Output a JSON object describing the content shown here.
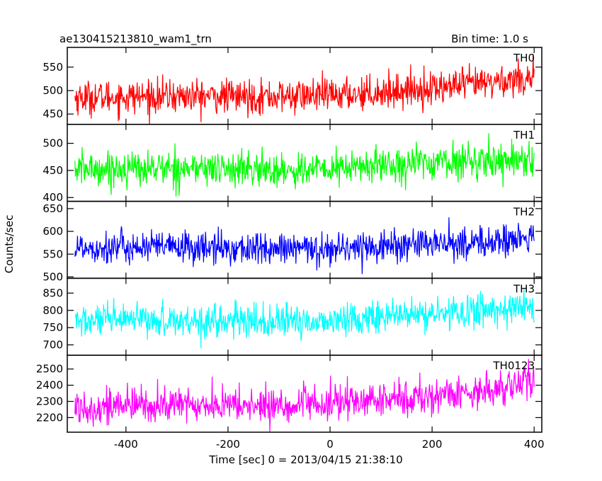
{
  "header": {
    "left_title": "ae130415213810_wam1_trn",
    "right_title": "Bin time: 1.0 s"
  },
  "chart_data": {
    "type": "line",
    "title": "ae130415213810_wam1_trn",
    "subtitle": "Bin time: 1.0 s",
    "xlabel": "Time [sec] 0 = 2013/04/15 21:38:10",
    "ylabel": "Counts/sec",
    "xlim": [
      -515,
      415
    ],
    "x_ticks": [
      -400,
      -200,
      0,
      200,
      400
    ],
    "x_range_data": [
      -500,
      400
    ],
    "grid": false,
    "panels": [
      {
        "name": "TH0",
        "color": "#ff0000",
        "ylim": [
          428,
          592
        ],
        "y_ticks": [
          450,
          500,
          550
        ],
        "trend": [
          [
            -500,
            485
          ],
          [
            -300,
            488
          ],
          [
            -100,
            487
          ],
          [
            0,
            490
          ],
          [
            100,
            497
          ],
          [
            200,
            505
          ],
          [
            300,
            515
          ],
          [
            400,
            530
          ]
        ],
        "noise_sd": 18
      },
      {
        "name": "TH1",
        "color": "#00ff00",
        "ylim": [
          393,
          535
        ],
        "y_ticks": [
          400,
          450,
          500
        ],
        "trend": [
          [
            -500,
            452
          ],
          [
            -300,
            455
          ],
          [
            -100,
            450
          ],
          [
            0,
            452
          ],
          [
            100,
            460
          ],
          [
            200,
            465
          ],
          [
            300,
            468
          ],
          [
            400,
            472
          ]
        ],
        "noise_sd": 16
      },
      {
        "name": "TH2",
        "color": "#0000ff",
        "ylim": [
          497,
          666
        ],
        "y_ticks": [
          500,
          550,
          600,
          650
        ],
        "trend": [
          [
            -500,
            565
          ],
          [
            -300,
            565
          ],
          [
            -100,
            560
          ],
          [
            0,
            562
          ],
          [
            100,
            568
          ],
          [
            200,
            572
          ],
          [
            300,
            575
          ],
          [
            400,
            585
          ]
        ],
        "noise_sd": 18
      },
      {
        "name": "TH3",
        "color": "#00ffff",
        "ylim": [
          670,
          893
        ],
        "y_ticks": [
          700,
          750,
          800,
          850
        ],
        "trend": [
          [
            -500,
            768
          ],
          [
            -300,
            772
          ],
          [
            -100,
            765
          ],
          [
            0,
            770
          ],
          [
            100,
            782
          ],
          [
            200,
            788
          ],
          [
            300,
            800
          ],
          [
            400,
            812
          ]
        ],
        "noise_sd": 24
      },
      {
        "name": "TH0123",
        "color": "#ff00ff",
        "ylim": [
          2110,
          2585
        ],
        "y_ticks": [
          2200,
          2300,
          2400,
          2500
        ],
        "trend": [
          [
            -500,
            2265
          ],
          [
            -300,
            2280
          ],
          [
            -100,
            2270
          ],
          [
            0,
            2285
          ],
          [
            100,
            2310
          ],
          [
            200,
            2330
          ],
          [
            300,
            2370
          ],
          [
            400,
            2420
          ]
        ],
        "noise_sd": 55
      }
    ]
  }
}
